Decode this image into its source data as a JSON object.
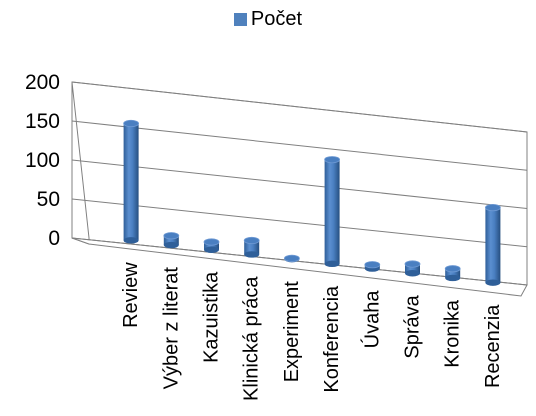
{
  "chart_data": {
    "type": "bar",
    "style": "3d-cylinder",
    "title": "",
    "xlabel": "",
    "ylabel": "",
    "ylim": [
      0,
      200
    ],
    "yticks": [
      0,
      50,
      100,
      150,
      200
    ],
    "grid": true,
    "legend_position": "top",
    "categories": [
      "Review",
      "Výber z literat",
      "Kazuistika",
      "Klinická práca",
      "Experiment",
      "Konferencia",
      "Úvaha",
      "Správa",
      "Kronika",
      "Recenzia"
    ],
    "series": [
      {
        "name": "Počet",
        "color": "#4f81bd",
        "values": [
          150,
          12,
          10,
          18,
          1,
          135,
          5,
          12,
          12,
          98
        ]
      }
    ]
  }
}
